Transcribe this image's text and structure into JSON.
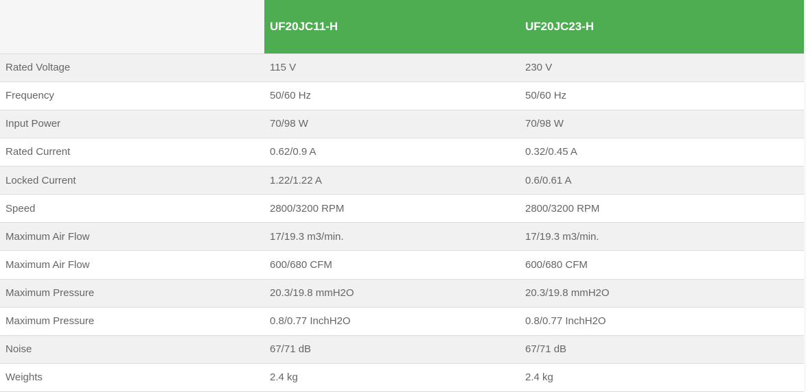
{
  "table": {
    "columns": [
      {
        "label": ""
      },
      {
        "label": "UF20JC11-H"
      },
      {
        "label": "UF20JC23-H"
      }
    ],
    "rows": [
      {
        "label": "Rated Voltage",
        "uf20jc11_h": "115 V",
        "uf20jc23_h": "230 V"
      },
      {
        "label": "Frequency",
        "uf20jc11_h": "50/60 Hz",
        "uf20jc23_h": "50/60 Hz"
      },
      {
        "label": "Input Power",
        "uf20jc11_h": "70/98 W",
        "uf20jc23_h": "70/98 W"
      },
      {
        "label": "Rated Current",
        "uf20jc11_h": "0.62/0.9 A",
        "uf20jc23_h": "0.32/0.45 A"
      },
      {
        "label": "Locked Current",
        "uf20jc11_h": "1.22/1.22 A",
        "uf20jc23_h": "0.6/0.61 A"
      },
      {
        "label": "Speed",
        "uf20jc11_h": "2800/3200 RPM",
        "uf20jc23_h": "2800/3200 RPM"
      },
      {
        "label": "Maximum Air Flow",
        "uf20jc11_h": "17/19.3 m3/min.",
        "uf20jc23_h": "17/19.3 m3/min."
      },
      {
        "label": "Maximum Air Flow",
        "uf20jc11_h": "600/680 CFM",
        "uf20jc23_h": "600/680 CFM"
      },
      {
        "label": "Maximum Pressure",
        "uf20jc11_h": "20.3/19.8 mmH2O",
        "uf20jc23_h": "20.3/19.8 mmH2O"
      },
      {
        "label": "Maximum Pressure",
        "uf20jc11_h": "0.8/0.77 InchH2O",
        "uf20jc23_h": "0.8/0.77 InchH2O"
      },
      {
        "label": "Noise",
        "uf20jc11_h": "67/71 dB",
        "uf20jc23_h": "67/71 dB"
      },
      {
        "label": "Weights",
        "uf20jc11_h": "2.4 kg",
        "uf20jc23_h": "2.4 kg"
      }
    ],
    "colors": {
      "header_bg": "#4cae50",
      "header_text": "#ffffff",
      "blank_header_bg": "#f6f6f6",
      "row_stripe_bg": "#f1f1f1",
      "row_bg": "#ffffff",
      "border": "#dddddd",
      "text": "#666666"
    }
  }
}
